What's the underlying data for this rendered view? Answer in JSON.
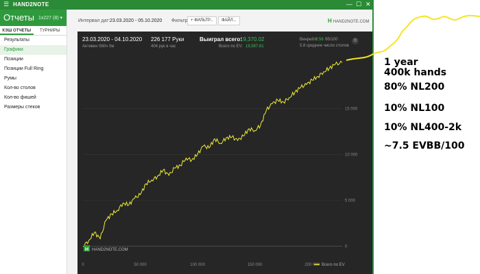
{
  "window": {
    "brand": "HAND2NOTE",
    "menu_glyph": "☰",
    "min": "—",
    "max": "☐",
    "close": "✕"
  },
  "sidebar": {
    "title": "Отчеты",
    "subtitle": "1x227 (8) ▾",
    "tabs": [
      "КЭШ ОТЧЕТЫ",
      "ТУРНИРЫ"
    ],
    "items": [
      "Результаты",
      "Графики",
      "Позиции",
      "Позиции Full Ring",
      "Румы",
      "Кол-во столов",
      "Кол-во фишей",
      "Размеры стеков"
    ]
  },
  "toolbar": {
    "interval_label": "Интервал дат:",
    "interval_value": "23.03.2020 - 05.10.2020",
    "filters_label": "Фильтры:",
    "filter_button": "+ ФИЛЬТР...",
    "file_button": "ФАЙЛ...",
    "logo_text": "HAND2NOTE.COM"
  },
  "panel": {
    "dates": "23.03.2020 - 04.10.2020",
    "active": "Активен 560ч 0м",
    "hands": "226 177 Руки",
    "hands_per_hour": "404 рук в час",
    "won_label": "Выиграл всего:",
    "won_value": "19,370.02",
    "ev_label": "Всего по EV:",
    "ev_value": "19,587.81",
    "winrate_label": "Винрейт:",
    "winrate_value": "8.56",
    "winrate_unit": "бб/100",
    "tables_avg": "5.8 среднее число столов",
    "gear_glyph": "⚙",
    "watermark": "HAND2NOTE.COM",
    "watermark_glyph": "H"
  },
  "chart_data": {
    "type": "line",
    "x_ticks": [
      "0",
      "50 000",
      "100 000",
      "150 000",
      "200 000"
    ],
    "y_ticks": [
      "0",
      "5 000",
      "10 000",
      "15 000"
    ],
    "xlim": [
      0,
      226177
    ],
    "ylim": [
      -800,
      21000
    ],
    "legend": "Всего по EV",
    "series": [
      {
        "color": "#f2ee3a",
        "x": [
          0,
          5000,
          10000,
          15000,
          20000,
          25000,
          30000,
          35000,
          40000,
          45000,
          50000,
          55000,
          60000,
          65000,
          70000,
          75000,
          80000,
          85000,
          90000,
          95000,
          100000,
          105000,
          110000,
          115000,
          120000,
          125000,
          130000,
          135000,
          140000,
          145000,
          150000,
          155000,
          160000,
          165000,
          170000,
          175000,
          180000,
          185000,
          190000,
          195000,
          200000,
          205000,
          210000,
          215000,
          220000,
          226177
        ],
        "y": [
          0,
          600,
          1500,
          800,
          2800,
          3500,
          3900,
          4700,
          4500,
          5200,
          5600,
          6800,
          7200,
          7600,
          8300,
          7700,
          8500,
          8800,
          9600,
          9400,
          10000,
          10900,
          10700,
          11700,
          11200,
          11800,
          11900,
          11500,
          12000,
          12800,
          12600,
          13200,
          14800,
          15500,
          15900,
          15700,
          16200,
          16800,
          17300,
          17600,
          18100,
          18500,
          19000,
          19400,
          19800,
          20000
        ]
      }
    ]
  },
  "annotation": {
    "lines": [
      "1 year",
      "400k hands",
      "80% NL200",
      "10% NL100",
      "10% NL400-2k",
      "~7.5 EVBB/100"
    ],
    "color": "#f5e51f"
  }
}
